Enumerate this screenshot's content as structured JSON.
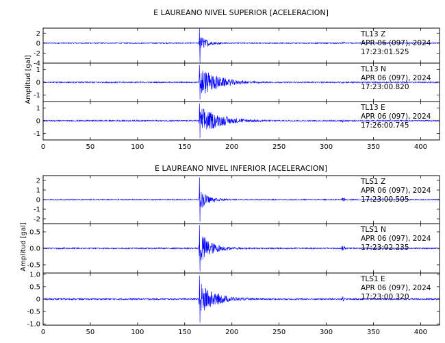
{
  "chart_data": [
    {
      "type": "line",
      "title": "E LAUREANO NIVEL SUPERIOR [ACELERACION]",
      "ylabel": "Amplitud [gal]",
      "xlim": [
        0,
        420
      ],
      "xticks": [
        0,
        50,
        100,
        150,
        200,
        250,
        300,
        350,
        400
      ],
      "color": "#0000ff",
      "panels": [
        {
          "label": "TL13  Z",
          "date": "APR 06 (097), 2024",
          "time": "17:23:01.525",
          "ylim": [
            -4,
            3
          ],
          "yticks": [
            -4,
            -2,
            0,
            2
          ],
          "event": {
            "onset": 165,
            "peak": 3.0,
            "trough": -4.0,
            "envelope": 2.0,
            "decay": 8,
            "noise": 0.1,
            "blip_at": 318,
            "blip_amp": 0.3
          }
        },
        {
          "label": "TL13  N",
          "date": "APR 06 (097), 2024",
          "time": "17:23:00.820",
          "ylim": [
            -1.5,
            1.5
          ],
          "yticks": [
            -1,
            0,
            1
          ],
          "event": {
            "onset": 165,
            "peak": 1.35,
            "trough": -1.35,
            "envelope": 1.3,
            "decay": 20,
            "noise": 0.05,
            "blip_at": 318,
            "blip_amp": 0.1
          }
        },
        {
          "label": "TL13  E",
          "date": "APR 06 (097), 2024",
          "time": "17:26:00.745",
          "ylim": [
            -1.5,
            1.5
          ],
          "yticks": [
            -1,
            0,
            1
          ],
          "event": {
            "onset": 165,
            "peak": 1.35,
            "trough": -1.35,
            "envelope": 1.2,
            "decay": 22,
            "noise": 0.05,
            "blip_at": 318,
            "blip_amp": 0.1
          }
        }
      ]
    },
    {
      "type": "line",
      "title": "E LAUREANO NIVEL INFERIOR [ACELERACION]",
      "ylabel": "Amplitud [gal]",
      "xlim": [
        0,
        420
      ],
      "xticks": [
        0,
        50,
        100,
        150,
        200,
        250,
        300,
        350,
        400
      ],
      "color": "#0000ff",
      "panels": [
        {
          "label": "TLS1   Z",
          "date": "APR 06 (097), 2024",
          "time": "17:23:00.505",
          "ylim": [
            -2.5,
            2.5
          ],
          "yticks": [
            -2,
            -1,
            0,
            1,
            2
          ],
          "event": {
            "onset": 165,
            "peak": 2.3,
            "trough": -2.3,
            "envelope": 1.2,
            "decay": 10,
            "noise": 0.05,
            "blip_at": 318,
            "blip_amp": 0.2
          }
        },
        {
          "label": "TLS1   N",
          "date": "APR 06 (097), 2024",
          "time": "17:23:02.235",
          "ylim": [
            -0.75,
            0.75
          ],
          "yticks": [
            -0.5,
            0.0,
            0.5
          ],
          "event": {
            "onset": 165,
            "peak": 0.7,
            "trough": -0.7,
            "envelope": 0.6,
            "decay": 12,
            "noise": 0.02,
            "blip_at": 318,
            "blip_amp": 0.08
          }
        },
        {
          "label": "TLS1   E",
          "date": "APR 06 (097), 2024",
          "time": "17:23:00.320",
          "ylim": [
            -1.05,
            1.05
          ],
          "yticks": [
            -1.0,
            -0.5,
            0.0,
            0.5,
            1.0
          ],
          "event": {
            "onset": 165,
            "peak": 0.95,
            "trough": -0.95,
            "envelope": 0.75,
            "decay": 16,
            "noise": 0.03,
            "blip_at": 318,
            "blip_amp": 0.1
          }
        }
      ]
    }
  ]
}
